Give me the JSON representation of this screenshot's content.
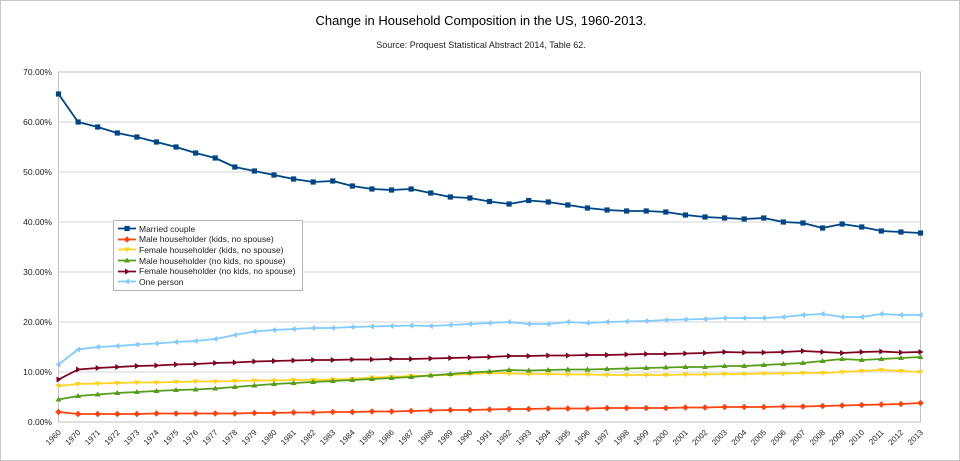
{
  "header": {
    "title": "Change in Household Composition in the US, 1960-2013.",
    "subtitle": "Source: Proquest Statistical Abstract 2014, Table 62."
  },
  "chart_data": {
    "type": "line",
    "title": "Change in Household Composition in the US, 1960-2013.",
    "subtitle": "Source: Proquest Statistical Abstract 2014, Table 62.",
    "xlabel": "",
    "ylabel": "",
    "ylim": [
      0,
      70
    ],
    "grid": true,
    "legend_position": "inside-left-middle",
    "y_ticks": [
      "0.00%",
      "10.00%",
      "20.00%",
      "30.00%",
      "40.00%",
      "50.00%",
      "60.00%",
      "70.00%"
    ],
    "x": [
      "1960",
      "1970",
      "1971",
      "1972",
      "1973",
      "1974",
      "1975",
      "1976",
      "1977",
      "1978",
      "1979",
      "1980",
      "1981",
      "1982",
      "1983",
      "1984",
      "1985",
      "1986",
      "1987",
      "1988",
      "1989",
      "1990",
      "1991",
      "1992",
      "1993",
      "1994",
      "1995",
      "1996",
      "1997",
      "1998",
      "1999",
      "2000",
      "2001",
      "2002",
      "2003",
      "2004",
      "2005",
      "2006",
      "2007",
      "2008",
      "2009",
      "2010",
      "2011",
      "2012",
      "2013"
    ],
    "series": [
      {
        "name": "Married couple",
        "color": "#004586",
        "marker": "square",
        "values": [
          65.6,
          60.0,
          59.0,
          57.8,
          57.0,
          56.0,
          55.0,
          53.8,
          52.8,
          51.0,
          50.2,
          49.4,
          48.6,
          48.0,
          48.2,
          47.2,
          46.6,
          46.4,
          46.6,
          45.8,
          45.0,
          44.8,
          44.1,
          43.6,
          44.3,
          44.0,
          43.4,
          42.8,
          42.4,
          42.2,
          42.2,
          42.0,
          41.4,
          41.0,
          40.8,
          40.6,
          40.8,
          40.0,
          39.8,
          38.8,
          39.6,
          39.0,
          38.2,
          38.0,
          37.8
        ]
      },
      {
        "name": "Male householder (kids, no spouse)",
        "color": "#ff420e",
        "marker": "diamond",
        "values": [
          2.0,
          1.6,
          1.6,
          1.6,
          1.6,
          1.7,
          1.7,
          1.7,
          1.7,
          1.7,
          1.8,
          1.8,
          1.9,
          1.9,
          2.0,
          2.0,
          2.1,
          2.1,
          2.2,
          2.3,
          2.4,
          2.4,
          2.5,
          2.6,
          2.6,
          2.7,
          2.7,
          2.7,
          2.8,
          2.8,
          2.8,
          2.8,
          2.9,
          2.9,
          3.0,
          3.0,
          3.0,
          3.1,
          3.1,
          3.2,
          3.3,
          3.4,
          3.5,
          3.6,
          3.8
        ]
      },
      {
        "name": "Female householder (kids, no spouse)",
        "color": "#ffd320",
        "marker": "arrow-down",
        "values": [
          7.2,
          7.6,
          7.7,
          7.8,
          7.9,
          7.9,
          8.0,
          8.1,
          8.1,
          8.2,
          8.3,
          8.3,
          8.4,
          8.4,
          8.5,
          8.6,
          8.9,
          9.0,
          9.2,
          9.3,
          9.4,
          9.6,
          9.8,
          9.7,
          9.6,
          9.6,
          9.5,
          9.5,
          9.4,
          9.4,
          9.4,
          9.4,
          9.5,
          9.5,
          9.6,
          9.6,
          9.7,
          9.7,
          9.8,
          9.8,
          10.0,
          10.2,
          10.4,
          10.2,
          10.0
        ]
      },
      {
        "name": "Male householder (no kids, no spouse)",
        "color": "#579d1c",
        "marker": "arrow-up",
        "values": [
          4.5,
          5.2,
          5.5,
          5.8,
          6.0,
          6.2,
          6.4,
          6.5,
          6.7,
          7.0,
          7.3,
          7.6,
          7.8,
          8.0,
          8.2,
          8.4,
          8.6,
          8.8,
          9.0,
          9.3,
          9.6,
          9.9,
          10.1,
          10.4,
          10.3,
          10.4,
          10.5,
          10.5,
          10.6,
          10.7,
          10.8,
          10.9,
          11.0,
          11.0,
          11.2,
          11.2,
          11.4,
          11.6,
          11.8,
          12.2,
          12.6,
          12.4,
          12.6,
          12.8,
          13.0
        ]
      },
      {
        "name": "Female householder (no kids, no spouse)",
        "color": "#7e0021",
        "marker": "arrow-right",
        "values": [
          8.5,
          10.5,
          10.8,
          11.0,
          11.2,
          11.3,
          11.5,
          11.6,
          11.8,
          11.9,
          12.1,
          12.2,
          12.3,
          12.4,
          12.4,
          12.5,
          12.5,
          12.6,
          12.6,
          12.7,
          12.8,
          12.9,
          13.0,
          13.2,
          13.2,
          13.3,
          13.3,
          13.4,
          13.4,
          13.5,
          13.6,
          13.6,
          13.7,
          13.8,
          14.0,
          13.9,
          13.9,
          14.0,
          14.2,
          14.0,
          13.8,
          14.0,
          14.1,
          13.9,
          14.0
        ]
      },
      {
        "name": "One person",
        "color": "#83caff",
        "marker": "arrow-left",
        "values": [
          11.5,
          14.5,
          15.0,
          15.2,
          15.5,
          15.7,
          16.0,
          16.2,
          16.6,
          17.4,
          18.1,
          18.4,
          18.6,
          18.8,
          18.8,
          19.0,
          19.1,
          19.2,
          19.3,
          19.2,
          19.4,
          19.6,
          19.8,
          20.0,
          19.6,
          19.6,
          20.0,
          19.8,
          20.0,
          20.1,
          20.2,
          20.4,
          20.5,
          20.6,
          20.8,
          20.8,
          20.8,
          21.0,
          21.4,
          21.6,
          21.0,
          21.0,
          21.6,
          21.4,
          21.4
        ]
      }
    ],
    "colors": {
      "gridline": "#d6d6d6",
      "plot_border": "#c2c2c2",
      "tick_text": "#222222"
    }
  }
}
